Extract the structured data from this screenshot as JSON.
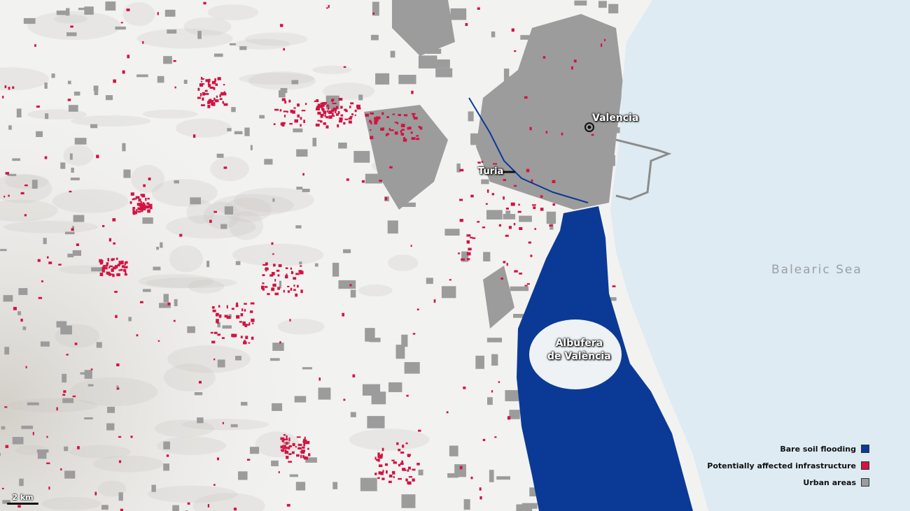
{
  "map": {
    "places": {
      "city": "Valencia",
      "river": "Turia",
      "lagoon": "Albufera\nde València",
      "sea": "Balearic Sea"
    },
    "legend": [
      {
        "label": "Bare soil flooding",
        "color": "#0b3a96"
      },
      {
        "label": "Potentially affected infrastructure",
        "color": "#d31341"
      },
      {
        "label": "Urban areas",
        "color": "#9c9c9c"
      }
    ],
    "scale_bar": "2 km",
    "colors": {
      "sea": "#deebf2",
      "land": "#f2f2f1",
      "urban": "#9c9c9c",
      "flood": "#0b3a96",
      "infrastructure": "#d31341"
    }
  }
}
